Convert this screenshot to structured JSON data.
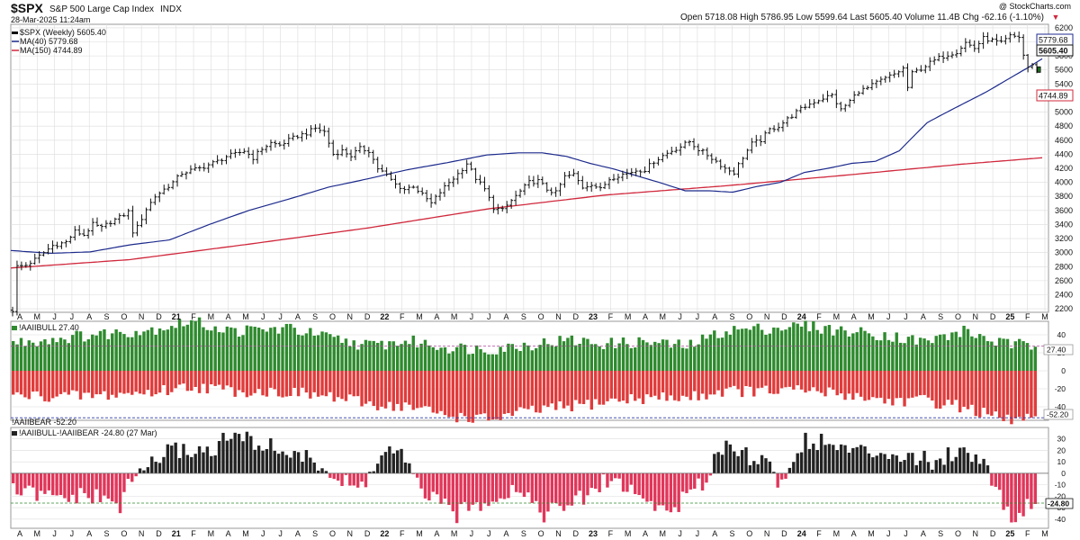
{
  "header": {
    "symbol": "$SPX",
    "name": "S&P 500 Large Cap Index",
    "exchange": "INDX",
    "date": "28-Mar-2025 11:24am",
    "watermark": "@ StockCharts.com",
    "quote": "Open 5718.08  High 5786.95  Low 5599.64  Last 5605.40  Volume 11.4B  Chg -62.16 (-1.10%)",
    "quote_chg_marker": "▼"
  },
  "legend": {
    "price": "$SPX (Weekly) 5605.40",
    "ma40": "MA(40) 5779.68",
    "ma150": "MA(150) 4744.89",
    "bull": "!AAIIBULL 27.40",
    "bear": "!AAIIBEAR -52.20",
    "spread": "!AAIIBULL-!AAIIBEAR -24.80 (27 Mar)"
  },
  "colors": {
    "ma40": "#1c2a8c",
    "ma150": "#d0283c",
    "bull": "#2e8a2e",
    "bear": "#e03b3b",
    "spread_pos": "#222222",
    "spread_neg": "#e0365a",
    "last_price": "#1f8a1f",
    "grid": "#dcdcdc"
  },
  "chart_data": [
    {
      "type": "line",
      "title": "$SPX (Weekly)",
      "ylim": [
        2150,
        6250
      ],
      "yticks": [
        2200,
        2400,
        2600,
        2800,
        3000,
        3200,
        3400,
        3600,
        3800,
        4000,
        4200,
        4400,
        4600,
        4800,
        5000,
        5200,
        5400,
        5600,
        5800,
        6000,
        6200
      ],
      "price_anchors": [
        [
          0,
          2180
        ],
        [
          1,
          2800
        ],
        [
          3,
          2820
        ],
        [
          5,
          2900
        ],
        [
          7,
          3000
        ],
        [
          9,
          3100
        ],
        [
          12,
          3150
        ],
        [
          14,
          3300
        ],
        [
          16,
          3250
        ],
        [
          18,
          3400
        ],
        [
          20,
          3350
        ],
        [
          22,
          3440
        ],
        [
          24,
          3500
        ],
        [
          26,
          3580
        ],
        [
          27,
          3300
        ],
        [
          28,
          3360
        ],
        [
          30,
          3620
        ],
        [
          32,
          3800
        ],
        [
          34,
          3900
        ],
        [
          36,
          4000
        ],
        [
          38,
          4130
        ],
        [
          40,
          4170
        ],
        [
          42,
          4200
        ],
        [
          44,
          4250
        ],
        [
          46,
          4300
        ],
        [
          48,
          4370
        ],
        [
          50,
          4400
        ],
        [
          52,
          4450
        ],
        [
          54,
          4350
        ],
        [
          56,
          4480
        ],
        [
          58,
          4560
        ],
        [
          60,
          4530
        ],
        [
          62,
          4600
        ],
        [
          64,
          4660
        ],
        [
          66,
          4700
        ],
        [
          68,
          4770
        ],
        [
          70,
          4720
        ],
        [
          71,
          4560
        ],
        [
          72,
          4400
        ],
        [
          74,
          4450
        ],
        [
          76,
          4380
        ],
        [
          78,
          4480
        ],
        [
          80,
          4450
        ],
        [
          82,
          4200
        ],
        [
          84,
          4100
        ],
        [
          86,
          3970
        ],
        [
          88,
          3900
        ],
        [
          90,
          3950
        ],
        [
          92,
          3820
        ],
        [
          94,
          3700
        ],
        [
          96,
          3860
        ],
        [
          98,
          4000
        ],
        [
          100,
          4120
        ],
        [
          102,
          4270
        ],
        [
          104,
          4060
        ],
        [
          106,
          3900
        ],
        [
          108,
          3640
        ],
        [
          110,
          3600
        ],
        [
          112,
          3740
        ],
        [
          114,
          3870
        ],
        [
          116,
          4000
        ],
        [
          118,
          4020
        ],
        [
          120,
          3900
        ],
        [
          122,
          3850
        ],
        [
          124,
          4080
        ],
        [
          126,
          4110
        ],
        [
          128,
          3930
        ],
        [
          130,
          3980
        ],
        [
          132,
          3900
        ],
        [
          134,
          4050
        ],
        [
          136,
          4100
        ],
        [
          138,
          4130
        ],
        [
          140,
          4170
        ],
        [
          142,
          4180
        ],
        [
          144,
          4300
        ],
        [
          146,
          4380
        ],
        [
          148,
          4450
        ],
        [
          150,
          4510
        ],
        [
          152,
          4580
        ],
        [
          154,
          4470
        ],
        [
          156,
          4390
        ],
        [
          158,
          4300
        ],
        [
          160,
          4200
        ],
        [
          162,
          4140
        ],
        [
          164,
          4360
        ],
        [
          166,
          4550
        ],
        [
          168,
          4600
        ],
        [
          170,
          4750
        ],
        [
          172,
          4800
        ],
        [
          174,
          4900
        ],
        [
          176,
          5000
        ],
        [
          178,
          5080
        ],
        [
          180,
          5150
        ],
        [
          182,
          5200
        ],
        [
          184,
          5240
        ],
        [
          186,
          5030
        ],
        [
          188,
          5160
        ],
        [
          190,
          5300
        ],
        [
          192,
          5340
        ],
        [
          194,
          5420
        ],
        [
          196,
          5480
        ],
        [
          198,
          5540
        ],
        [
          200,
          5620
        ],
        [
          201,
          5350
        ],
        [
          202,
          5550
        ],
        [
          204,
          5620
        ],
        [
          206,
          5700
        ],
        [
          208,
          5770
        ],
        [
          210,
          5820
        ],
        [
          212,
          5860
        ],
        [
          214,
          5990
        ],
        [
          216,
          5910
        ],
        [
          218,
          6050
        ],
        [
          220,
          6020
        ],
        [
          222,
          5980
        ],
        [
          224,
          6080
        ],
        [
          226,
          6070
        ],
        [
          227,
          5810
        ],
        [
          228,
          5640
        ],
        [
          229,
          5660
        ],
        [
          230,
          5605.4
        ]
      ],
      "ma40_anchors": [
        [
          0,
          3030
        ],
        [
          10,
          2990
        ],
        [
          20,
          3010
        ],
        [
          30,
          3110
        ],
        [
          40,
          3180
        ],
        [
          50,
          3400
        ],
        [
          60,
          3600
        ],
        [
          70,
          3760
        ],
        [
          80,
          3930
        ],
        [
          90,
          4050
        ],
        [
          100,
          4180
        ],
        [
          110,
          4280
        ],
        [
          120,
          4390
        ],
        [
          128,
          4420
        ],
        [
          134,
          4420
        ],
        [
          140,
          4370
        ],
        [
          146,
          4270
        ],
        [
          152,
          4190
        ],
        [
          158,
          4090
        ],
        [
          164,
          3990
        ],
        [
          170,
          3880
        ],
        [
          176,
          3880
        ],
        [
          182,
          3860
        ],
        [
          188,
          3940
        ],
        [
          194,
          4000
        ],
        [
          200,
          4140
        ],
        [
          206,
          4200
        ],
        [
          212,
          4270
        ],
        [
          218,
          4300
        ],
        [
          224,
          4450
        ],
        [
          228,
          4680
        ],
        [
          231,
          4850
        ],
        [
          236,
          5000
        ],
        [
          246,
          5290
        ],
        [
          256,
          5620
        ],
        [
          260,
          5760
        ]
      ],
      "ma150_anchors": [
        [
          0,
          2780
        ],
        [
          30,
          2900
        ],
        [
          60,
          3120
        ],
        [
          90,
          3350
        ],
        [
          120,
          3620
        ],
        [
          150,
          3820
        ],
        [
          180,
          3950
        ],
        [
          210,
          4100
        ],
        [
          240,
          4260
        ],
        [
          260,
          4350
        ]
      ],
      "last_price": 5605.4,
      "ma40_last": 5779.68,
      "ma150_last": 4744.89,
      "x_labels": [
        "A",
        "M",
        "J",
        "J",
        "A",
        "S",
        "O",
        "N",
        "D",
        "21",
        "F",
        "M",
        "A",
        "M",
        "J",
        "J",
        "A",
        "S",
        "O",
        "N",
        "D",
        "22",
        "F",
        "M",
        "A",
        "M",
        "J",
        "J",
        "A",
        "S",
        "O",
        "N",
        "D",
        "23",
        "F",
        "M",
        "A",
        "M",
        "J",
        "J",
        "A",
        "S",
        "O",
        "N",
        "D",
        "24",
        "F",
        "M",
        "A",
        "M",
        "J",
        "J",
        "A",
        "S",
        "O",
        "N",
        "D",
        "25",
        "F",
        "M"
      ],
      "year_labels": [
        "21",
        "22",
        "23",
        "24",
        "25"
      ]
    },
    {
      "type": "bar",
      "title": "!AAIIBULL / !AAIIBEAR",
      "ylim": [
        -55,
        55
      ],
      "yticks": [
        -40,
        -20,
        0,
        20,
        40
      ],
      "bull_anchors": [
        [
          0,
          31
        ],
        [
          20,
          40
        ],
        [
          35,
          46
        ],
        [
          45,
          55
        ],
        [
          55,
          44
        ],
        [
          70,
          47
        ],
        [
          80,
          36
        ],
        [
          90,
          28
        ],
        [
          100,
          33
        ],
        [
          110,
          26
        ],
        [
          120,
          24
        ],
        [
          130,
          29
        ],
        [
          140,
          34
        ],
        [
          150,
          30
        ],
        [
          160,
          32
        ],
        [
          170,
          27
        ],
        [
          180,
          45
        ],
        [
          190,
          47
        ],
        [
          200,
          50
        ],
        [
          210,
          44
        ],
        [
          220,
          40
        ],
        [
          230,
          32
        ],
        [
          240,
          44
        ],
        [
          250,
          30
        ],
        [
          258,
          27.4
        ]
      ],
      "bear_anchors": [
        [
          0,
          -28
        ],
        [
          20,
          -28
        ],
        [
          35,
          -24
        ],
        [
          45,
          -17
        ],
        [
          55,
          -22
        ],
        [
          70,
          -24
        ],
        [
          80,
          -29
        ],
        [
          90,
          -37
        ],
        [
          100,
          -40
        ],
        [
          110,
          -50
        ],
        [
          120,
          -54
        ],
        [
          130,
          -45
        ],
        [
          140,
          -40
        ],
        [
          150,
          -34
        ],
        [
          160,
          -30
        ],
        [
          170,
          -30
        ],
        [
          180,
          -22
        ],
        [
          190,
          -23
        ],
        [
          200,
          -22
        ],
        [
          210,
          -26
        ],
        [
          220,
          -33
        ],
        [
          230,
          -33
        ],
        [
          240,
          -40
        ],
        [
          250,
          -55
        ],
        [
          258,
          -52.2
        ]
      ],
      "bull_last": 27.4,
      "bear_last": -52.2
    },
    {
      "type": "bar",
      "title": "!AAIIBULL-!AAIIBEAR",
      "ylim": [
        -48,
        40
      ],
      "yticks": [
        -40,
        -30,
        -20,
        -10,
        0,
        10,
        20,
        30
      ],
      "spread_anchors": [
        [
          0,
          -15
        ],
        [
          10,
          -22
        ],
        [
          20,
          -20
        ],
        [
          27,
          -28
        ],
        [
          30,
          -5
        ],
        [
          35,
          10
        ],
        [
          40,
          20
        ],
        [
          50,
          20
        ],
        [
          55,
          33
        ],
        [
          60,
          28
        ],
        [
          70,
          18
        ],
        [
          78,
          7
        ],
        [
          82,
          -8
        ],
        [
          88,
          -12
        ],
        [
          94,
          20
        ],
        [
          98,
          15
        ],
        [
          102,
          -10
        ],
        [
          108,
          -28
        ],
        [
          112,
          -36
        ],
        [
          120,
          -22
        ],
        [
          128,
          -12
        ],
        [
          134,
          -35
        ],
        [
          140,
          -28
        ],
        [
          146,
          -18
        ],
        [
          150,
          -5
        ],
        [
          154,
          -10
        ],
        [
          160,
          -25
        ],
        [
          166,
          -33
        ],
        [
          170,
          -20
        ],
        [
          174,
          -10
        ],
        [
          178,
          22
        ],
        [
          182,
          25
        ],
        [
          186,
          15
        ],
        [
          190,
          10
        ],
        [
          194,
          -10
        ],
        [
          200,
          30
        ],
        [
          206,
          25
        ],
        [
          214,
          18
        ],
        [
          220,
          20
        ],
        [
          226,
          15
        ],
        [
          232,
          10
        ],
        [
          238,
          20
        ],
        [
          244,
          15
        ],
        [
          248,
          -10
        ],
        [
          252,
          -40
        ],
        [
          256,
          -28
        ],
        [
          258,
          -24.8
        ]
      ],
      "spread_last": -24.8,
      "spread_ref": -26
    }
  ]
}
